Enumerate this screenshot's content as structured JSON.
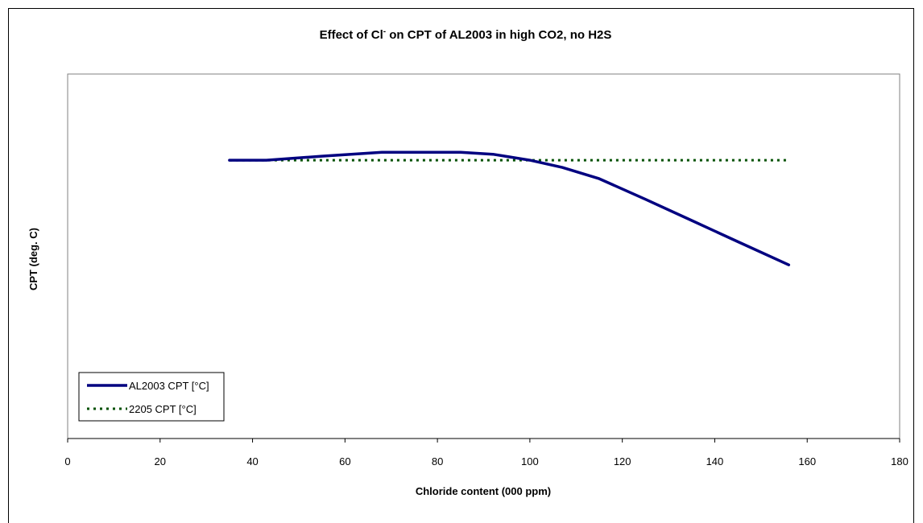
{
  "chart_data": {
    "type": "line",
    "title": "Effect of Cl- on CPT of AL2003 in high CO2, no H2S",
    "title_parts": {
      "before": "Effect of Cl",
      "superscript": "-",
      "after": " on CPT of AL2003 in high CO2, no H2S"
    },
    "xlabel": "Chloride content (000 ppm)",
    "ylabel": "CPT (deg. C)",
    "xlim": [
      0,
      180
    ],
    "x_ticks": [
      "0",
      "20",
      "40",
      "60",
      "80",
      "100",
      "120",
      "140",
      "160",
      "180"
    ],
    "y_ticks_shown": false,
    "grid": false,
    "legend": {
      "placement": "bottom-left"
    },
    "series": [
      {
        "name": "AL2003 CPT [°C]",
        "color": "#000080",
        "style": "solid",
        "points": [
          [
            35,
            72
          ],
          [
            43,
            72
          ],
          [
            55,
            72.6
          ],
          [
            68,
            73.2
          ],
          [
            85,
            73.2
          ],
          [
            92,
            72.9
          ],
          [
            100,
            72
          ],
          [
            107,
            70.9
          ],
          [
            115,
            69.2
          ],
          [
            125,
            66.1
          ],
          [
            135,
            62.9
          ],
          [
            145,
            59.7
          ],
          [
            156,
            56.2
          ]
        ]
      },
      {
        "name": "2205 CPT [°C]",
        "color": "#005000",
        "style": "dotted",
        "points": [
          [
            35,
            72
          ],
          [
            156,
            72
          ]
        ]
      }
    ]
  }
}
